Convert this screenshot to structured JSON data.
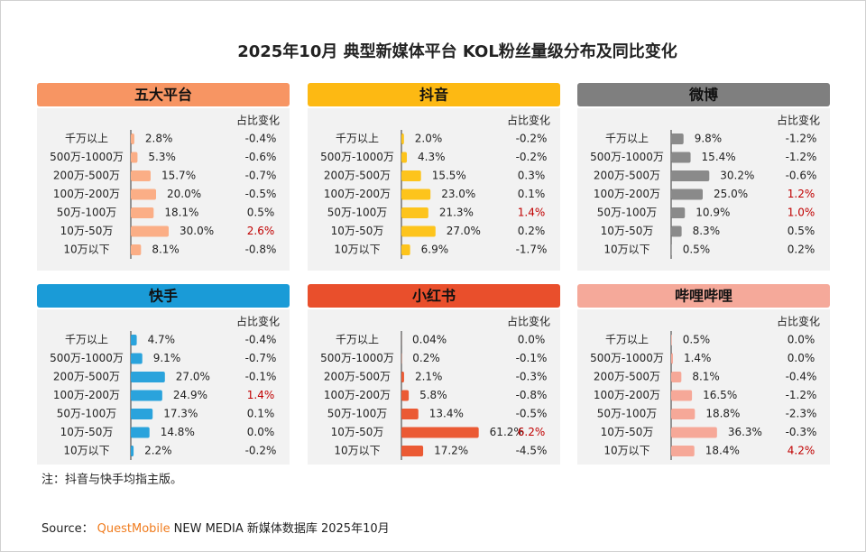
{
  "page_title": "2025年10月 典型新媒体平台 KOL粉丝量级分布及同比变化",
  "chart_data": [
    {
      "type": "bar",
      "title": "五大平台",
      "header_color": "#f79563",
      "color": "#fbae86",
      "xlim": [
        0,
        70
      ],
      "categories": [
        "千万以上",
        "500万-1000万",
        "200万-500万",
        "100万-200万",
        "50万-100万",
        "10万-50万",
        "10万以下"
      ],
      "values": [
        2.8,
        5.3,
        15.7,
        20.0,
        18.1,
        30.0,
        8.1
      ],
      "value_labels": [
        "2.8%",
        "5.3%",
        "15.7%",
        "20.0%",
        "18.1%",
        "30.0%",
        "8.1%"
      ],
      "change_header": "占比变化",
      "changes": [
        -0.4,
        -0.6,
        -0.7,
        -0.5,
        0.5,
        2.6,
        -0.8
      ],
      "change_labels": [
        "-0.4%",
        "-0.6%",
        "-0.7%",
        "-0.5%",
        "0.5%",
        "2.6%",
        "-0.8%"
      ],
      "change_colors": [
        "#222",
        "#222",
        "#222",
        "#222",
        "#222",
        "#c00000",
        "#222"
      ]
    },
    {
      "type": "bar",
      "title": "抖音",
      "header_color": "#fdb913",
      "color": "#fdc41c",
      "xlim": [
        0,
        70
      ],
      "categories": [
        "千万以上",
        "500万-1000万",
        "200万-500万",
        "100万-200万",
        "50万-100万",
        "10万-50万",
        "10万以下"
      ],
      "values": [
        2.0,
        4.3,
        15.5,
        23.0,
        21.3,
        27.0,
        6.9
      ],
      "value_labels": [
        "2.0%",
        "4.3%",
        "15.5%",
        "23.0%",
        "21.3%",
        "27.0%",
        "6.9%"
      ],
      "change_header": "占比变化",
      "changes": [
        -0.2,
        -0.2,
        0.3,
        0.1,
        1.4,
        0.2,
        -1.7
      ],
      "change_labels": [
        "-0.2%",
        "-0.2%",
        "0.3%",
        "0.1%",
        "1.4%",
        "0.2%",
        "-1.7%"
      ],
      "change_colors": [
        "#222",
        "#222",
        "#222",
        "#222",
        "#c00000",
        "#222",
        "#222"
      ]
    },
    {
      "type": "bar",
      "title": "微博",
      "header_color": "#7f7f7f",
      "color": "#8a8a8a",
      "xlim": [
        0,
        70
      ],
      "categories": [
        "千万以上",
        "500万-1000万",
        "200万-500万",
        "100万-200万",
        "50万-100万",
        "10万-50万",
        "10万以下"
      ],
      "values": [
        9.8,
        15.4,
        30.2,
        25.0,
        10.9,
        8.3,
        0.5
      ],
      "value_labels": [
        "9.8%",
        "15.4%",
        "30.2%",
        "25.0%",
        "10.9%",
        "8.3%",
        "0.5%"
      ],
      "change_header": "占比变化",
      "changes": [
        -1.2,
        -1.2,
        -0.6,
        1.2,
        1.0,
        0.5,
        0.2
      ],
      "change_labels": [
        "-1.2%",
        "-1.2%",
        "-0.6%",
        "1.2%",
        "1.0%",
        "0.5%",
        "0.2%"
      ],
      "change_colors": [
        "#222",
        "#222",
        "#222",
        "#c00000",
        "#c00000",
        "#222",
        "#222"
      ]
    },
    {
      "type": "bar",
      "title": "快手",
      "header_color": "#1a9bd7",
      "color": "#2aa3dc",
      "xlim": [
        0,
        70
      ],
      "categories": [
        "千万以上",
        "500万-1000万",
        "200万-500万",
        "100万-200万",
        "50万-100万",
        "10万-50万",
        "10万以下"
      ],
      "values": [
        4.7,
        9.1,
        27.0,
        24.9,
        17.3,
        14.8,
        2.2
      ],
      "value_labels": [
        "4.7%",
        "9.1%",
        "27.0%",
        "24.9%",
        "17.3%",
        "14.8%",
        "2.2%"
      ],
      "change_header": "占比变化",
      "changes": [
        -0.4,
        -0.7,
        -0.1,
        1.4,
        0.1,
        0.0,
        -0.2
      ],
      "change_labels": [
        "-0.4%",
        "-0.7%",
        "-0.1%",
        "1.4%",
        "0.1%",
        "0.0%",
        "-0.2%"
      ],
      "change_colors": [
        "#222",
        "#222",
        "#222",
        "#c00000",
        "#222",
        "#222",
        "#222"
      ]
    },
    {
      "type": "bar",
      "title": "小红书",
      "header_color": "#e94f2c",
      "color": "#eb5a34",
      "xlim": [
        0,
        70
      ],
      "categories": [
        "千万以上",
        "500万-1000万",
        "200万-500万",
        "100万-200万",
        "50万-100万",
        "10万-50万",
        "10万以下"
      ],
      "values": [
        0.04,
        0.2,
        2.1,
        5.8,
        13.4,
        61.2,
        17.2
      ],
      "value_labels": [
        "0.04%",
        "0.2%",
        "2.1%",
        "5.8%",
        "13.4%",
        "61.2%",
        "17.2%"
      ],
      "change_header": "占比变化",
      "changes": [
        0.0,
        -0.1,
        -0.3,
        -0.8,
        -0.5,
        6.2,
        -4.5
      ],
      "change_labels": [
        "0.0%",
        "-0.1%",
        "-0.3%",
        "-0.8%",
        "-0.5%",
        "6.2%",
        "-4.5%"
      ],
      "change_colors": [
        "#222",
        "#222",
        "#222",
        "#222",
        "#222",
        "#c00000",
        "#222"
      ]
    },
    {
      "type": "bar",
      "title": "哔哩哔哩",
      "header_color": "#f5a99a",
      "color": "#f6a898",
      "xlim": [
        0,
        70
      ],
      "categories": [
        "千万以上",
        "500万-1000万",
        "200万-500万",
        "100万-200万",
        "50万-100万",
        "10万-50万",
        "10万以下"
      ],
      "values": [
        0.5,
        1.4,
        8.1,
        16.5,
        18.8,
        36.3,
        18.4
      ],
      "value_labels": [
        "0.5%",
        "1.4%",
        "8.1%",
        "16.5%",
        "18.8%",
        "36.3%",
        "18.4%"
      ],
      "change_header": "占比变化",
      "changes": [
        0.0,
        0.0,
        -0.4,
        -1.2,
        -2.3,
        -0.3,
        4.2
      ],
      "change_labels": [
        "0.0%",
        "0.0%",
        "-0.4%",
        "-1.2%",
        "-2.3%",
        "-0.3%",
        "4.2%"
      ],
      "change_colors": [
        "#222",
        "#222",
        "#222",
        "#222",
        "#222",
        "#222",
        "#c00000"
      ]
    }
  ],
  "note": "注：抖音与快手均指主版。",
  "source": {
    "prefix": "Source：",
    "brand": "QuestMobile",
    "text": "NEW MEDIA 新媒体数据库 2025年10月"
  }
}
